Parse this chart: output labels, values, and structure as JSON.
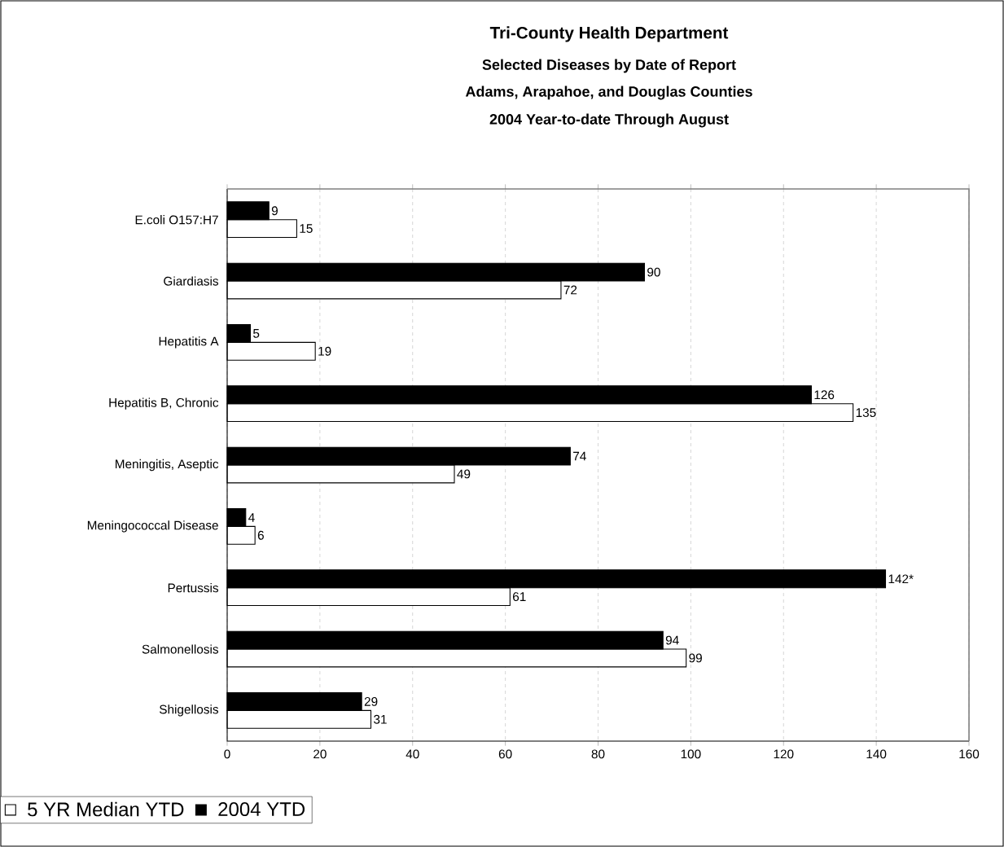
{
  "chart_data": {
    "type": "bar",
    "orientation": "horizontal",
    "title": "Tri-County Health Department",
    "subtitle": "Selected Diseases by Date of Report",
    "annotations": [
      "Adams, Arapahoe, and Douglas Counties",
      "2004 Year-to-date Through August"
    ],
    "categories": [
      "E.coli O157:H7",
      "Giardiasis",
      "Hepatitis A",
      "Hepatitis B, Chronic",
      "Meningitis, Aseptic",
      "Meningococcal Disease",
      "Pertussis",
      "Salmonellosis",
      "Shigellosis"
    ],
    "series": [
      {
        "name": "5 YR Median YTD",
        "color": "#ffffff",
        "values": [
          15,
          72,
          19,
          135,
          49,
          6,
          61,
          99,
          31
        ],
        "value_labels": [
          "15",
          "72",
          "19",
          "135",
          "49",
          "6",
          "61",
          "99",
          "31"
        ]
      },
      {
        "name": "2004 YTD",
        "color": "#000000",
        "values": [
          9,
          90,
          5,
          126,
          74,
          4,
          142,
          94,
          29
        ],
        "value_labels": [
          "9",
          "90",
          "5",
          "126",
          "74",
          "4",
          "142*",
          "94",
          "29"
        ]
      }
    ],
    "xlim": [
      0,
      160
    ],
    "xticks": [
      0,
      20,
      40,
      60,
      80,
      100,
      120,
      140,
      160
    ],
    "grid": "x",
    "legend": "bottom left"
  }
}
